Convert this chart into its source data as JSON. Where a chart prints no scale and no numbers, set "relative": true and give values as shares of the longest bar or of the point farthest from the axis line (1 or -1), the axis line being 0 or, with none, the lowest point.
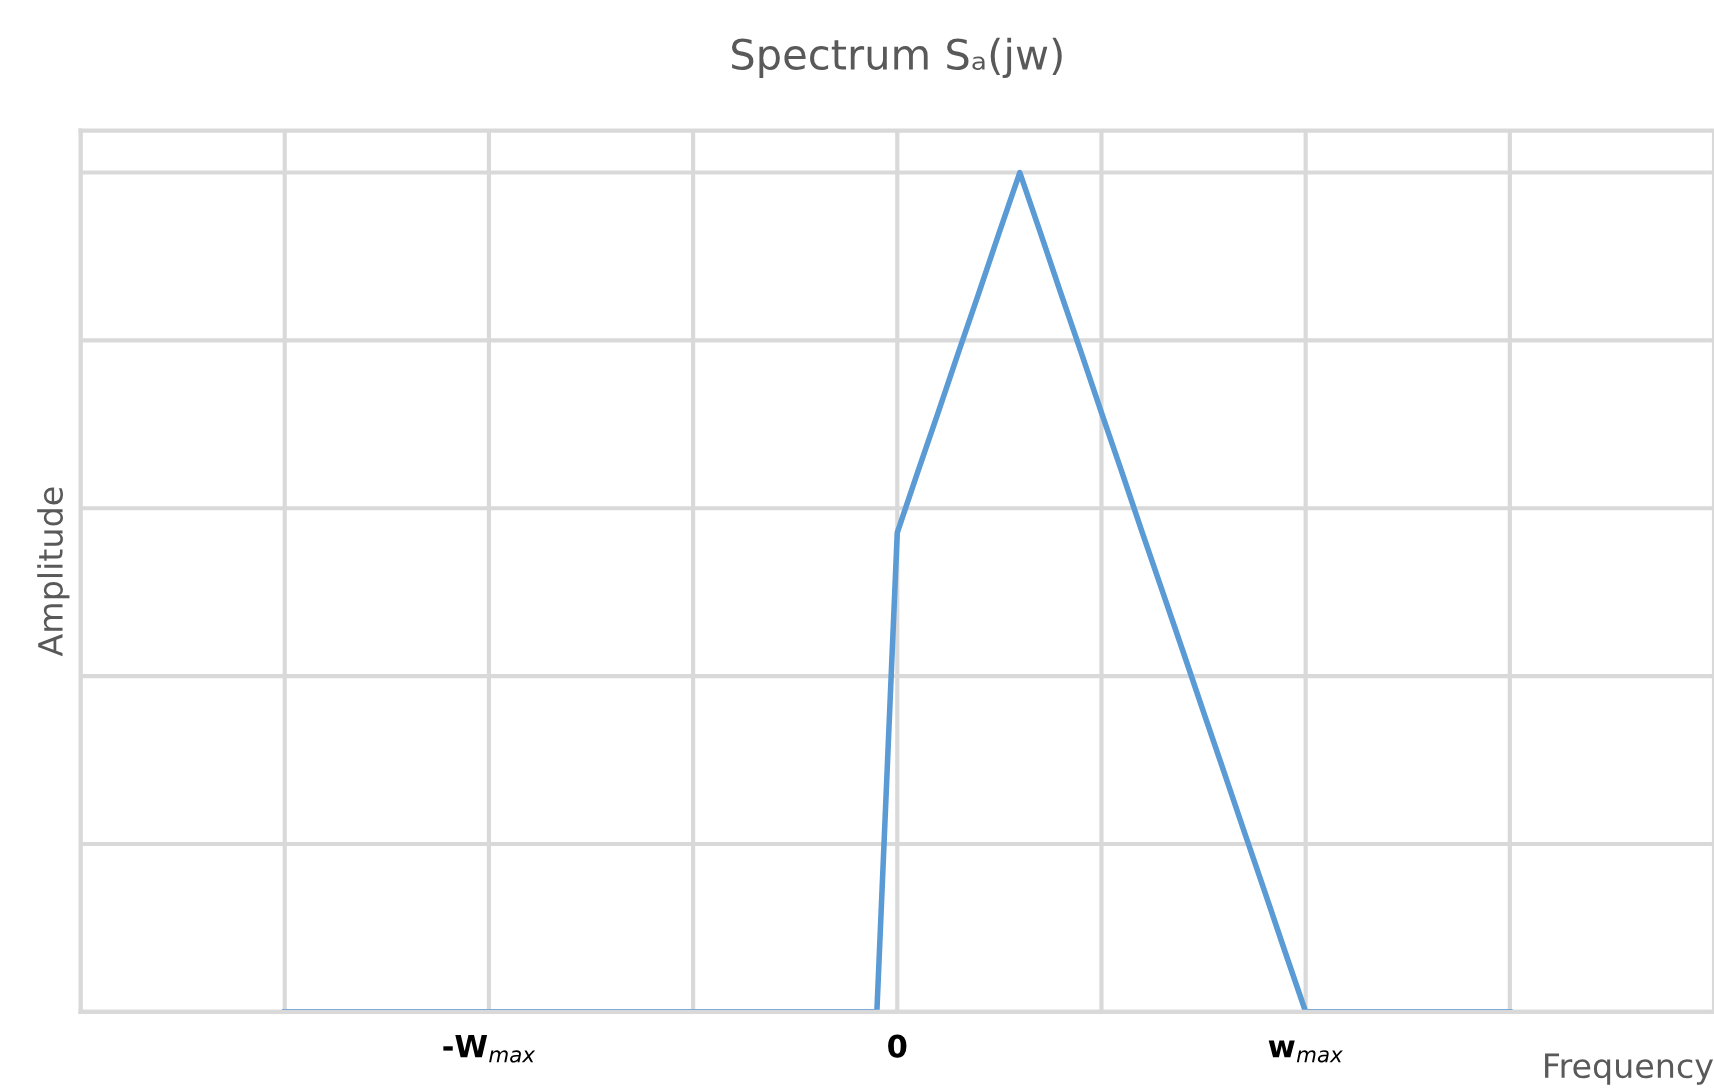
{
  "chart_data": {
    "type": "line",
    "title": "Spectrum Sₐ(jw)",
    "xlabel": "Frequency",
    "ylabel": "Amplitude",
    "relative": true,
    "categories": [
      null,
      null,
      null,
      null,
      null,
      null,
      null,
      null,
      null,
      null,
      null,
      null,
      null,
      null,
      null,
      null,
      null,
      null,
      null,
      null,
      "-W$_{max}$",
      null,
      null,
      null,
      null,
      null,
      null,
      null,
      null,
      null,
      null,
      null,
      null,
      null,
      null,
      null,
      null,
      null,
      null,
      null,
      "0",
      null,
      null,
      null,
      null,
      null,
      null,
      null,
      null,
      null,
      null,
      null,
      null,
      null,
      null,
      null,
      null,
      null,
      null,
      null,
      "w$_{max}$",
      null,
      null,
      null,
      null,
      null,
      null,
      null,
      null,
      null,
      null,
      null,
      null,
      null,
      null,
      null,
      null,
      null,
      null,
      null,
      null
    ],
    "series": [
      {
        "color": "#5b9bd5",
        "values": [
          null,
          null,
          null,
          null,
          null,
          null,
          null,
          null,
          null,
          null,
          0,
          0,
          0,
          0,
          0,
          0,
          0,
          0,
          0,
          0,
          0,
          0,
          0,
          0,
          0,
          0,
          0,
          0,
          0,
          0,
          0,
          0,
          0,
          0,
          0,
          0,
          0,
          0,
          0,
          0,
          0.571,
          0.643,
          0.714,
          0.786,
          0.857,
          0.929,
          1,
          0.929,
          0.857,
          0.786,
          0.714,
          0.643,
          0.571,
          0.5,
          0.429,
          0.357,
          0.286,
          0.214,
          0.143,
          0.071,
          0,
          0,
          0,
          0,
          0,
          0,
          0,
          0,
          0,
          0,
          0,
          null,
          null,
          null,
          null,
          null,
          null,
          null,
          null,
          null,
          null
        ]
      }
    ],
    "grid": true,
    "marker": "none",
    "line_style": "solid"
  }
}
